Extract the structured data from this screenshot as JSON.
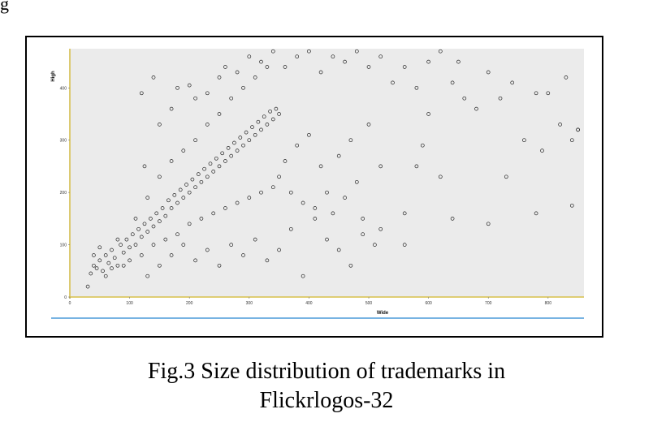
{
  "page_fragment": "g",
  "caption": {
    "line1": "Fig.3 Size distribution of trademarks in",
    "line2": "Flickrlogos-32"
  },
  "chart_data": {
    "type": "scatter",
    "xlabel": "Wide",
    "ylabel": "High",
    "xlim": [
      0,
      860
    ],
    "ylim": [
      0,
      475
    ],
    "x_ticks": [
      0,
      100,
      200,
      300,
      400,
      500,
      600,
      700,
      800
    ],
    "y_ticks": [
      0,
      100,
      200,
      300,
      400
    ],
    "grid": false,
    "colors": {
      "plot_bg": "#ebebeb",
      "axis": "#d8c04a",
      "marker": "#222222",
      "underline": "#4a9ad8"
    },
    "marker": "hollow-circle",
    "points": [
      [
        30,
        20
      ],
      [
        35,
        45
      ],
      [
        40,
        60
      ],
      [
        45,
        55
      ],
      [
        50,
        70
      ],
      [
        55,
        50
      ],
      [
        60,
        80
      ],
      [
        65,
        65
      ],
      [
        70,
        90
      ],
      [
        75,
        75
      ],
      [
        80,
        60
      ],
      [
        85,
        100
      ],
      [
        90,
        85
      ],
      [
        95,
        110
      ],
      [
        100,
        95
      ],
      [
        105,
        120
      ],
      [
        110,
        100
      ],
      [
        115,
        130
      ],
      [
        120,
        115
      ],
      [
        125,
        140
      ],
      [
        130,
        125
      ],
      [
        135,
        150
      ],
      [
        140,
        135
      ],
      [
        145,
        160
      ],
      [
        150,
        145
      ],
      [
        155,
        170
      ],
      [
        160,
        155
      ],
      [
        165,
        185
      ],
      [
        170,
        170
      ],
      [
        175,
        195
      ],
      [
        180,
        180
      ],
      [
        185,
        205
      ],
      [
        190,
        190
      ],
      [
        195,
        215
      ],
      [
        200,
        200
      ],
      [
        205,
        225
      ],
      [
        210,
        210
      ],
      [
        215,
        235
      ],
      [
        220,
        220
      ],
      [
        225,
        245
      ],
      [
        230,
        230
      ],
      [
        235,
        255
      ],
      [
        240,
        240
      ],
      [
        245,
        265
      ],
      [
        250,
        250
      ],
      [
        255,
        275
      ],
      [
        260,
        260
      ],
      [
        265,
        285
      ],
      [
        270,
        270
      ],
      [
        275,
        295
      ],
      [
        280,
        280
      ],
      [
        285,
        305
      ],
      [
        290,
        290
      ],
      [
        295,
        315
      ],
      [
        300,
        300
      ],
      [
        305,
        325
      ],
      [
        310,
        310
      ],
      [
        315,
        335
      ],
      [
        320,
        320
      ],
      [
        325,
        345
      ],
      [
        330,
        330
      ],
      [
        335,
        355
      ],
      [
        340,
        340
      ],
      [
        345,
        360
      ],
      [
        350,
        350
      ],
      [
        40,
        80
      ],
      [
        50,
        95
      ],
      [
        60,
        40
      ],
      [
        70,
        55
      ],
      [
        80,
        110
      ],
      [
        90,
        60
      ],
      [
        100,
        70
      ],
      [
        110,
        150
      ],
      [
        120,
        80
      ],
      [
        130,
        190
      ],
      [
        140,
        100
      ],
      [
        150,
        230
      ],
      [
        160,
        110
      ],
      [
        170,
        260
      ],
      [
        180,
        120
      ],
      [
        190,
        280
      ],
      [
        200,
        140
      ],
      [
        210,
        300
      ],
      [
        220,
        150
      ],
      [
        230,
        330
      ],
      [
        240,
        160
      ],
      [
        250,
        350
      ],
      [
        260,
        170
      ],
      [
        270,
        380
      ],
      [
        280,
        180
      ],
      [
        290,
        400
      ],
      [
        300,
        190
      ],
      [
        310,
        420
      ],
      [
        320,
        200
      ],
      [
        330,
        440
      ],
      [
        340,
        210
      ],
      [
        350,
        230
      ],
      [
        360,
        260
      ],
      [
        370,
        200
      ],
      [
        380,
        290
      ],
      [
        390,
        180
      ],
      [
        400,
        310
      ],
      [
        410,
        170
      ],
      [
        420,
        250
      ],
      [
        430,
        200
      ],
      [
        440,
        160
      ],
      [
        450,
        270
      ],
      [
        460,
        190
      ],
      [
        470,
        300
      ],
      [
        480,
        220
      ],
      [
        490,
        150
      ],
      [
        500,
        330
      ],
      [
        510,
        100
      ],
      [
        520,
        250
      ],
      [
        140,
        420
      ],
      [
        150,
        330
      ],
      [
        170,
        360
      ],
      [
        180,
        400
      ],
      [
        200,
        405
      ],
      [
        210,
        380
      ],
      [
        230,
        390
      ],
      [
        250,
        420
      ],
      [
        260,
        440
      ],
      [
        280,
        430
      ],
      [
        300,
        460
      ],
      [
        320,
        450
      ],
      [
        340,
        470
      ],
      [
        360,
        440
      ],
      [
        380,
        460
      ],
      [
        400,
        470
      ],
      [
        420,
        430
      ],
      [
        440,
        460
      ],
      [
        460,
        450
      ],
      [
        480,
        470
      ],
      [
        500,
        440
      ],
      [
        520,
        460
      ],
      [
        540,
        410
      ],
      [
        560,
        440
      ],
      [
        580,
        400
      ],
      [
        600,
        450
      ],
      [
        620,
        470
      ],
      [
        640,
        410
      ],
      [
        650,
        450
      ],
      [
        660,
        380
      ],
      [
        680,
        360
      ],
      [
        700,
        430
      ],
      [
        720,
        380
      ],
      [
        740,
        410
      ],
      [
        760,
        300
      ],
      [
        780,
        390
      ],
      [
        790,
        280
      ],
      [
        800,
        390
      ],
      [
        820,
        330
      ],
      [
        830,
        420
      ],
      [
        840,
        300
      ],
      [
        850,
        320
      ],
      [
        120,
        390
      ],
      [
        125,
        250
      ],
      [
        130,
        40
      ],
      [
        150,
        60
      ],
      [
        170,
        80
      ],
      [
        190,
        100
      ],
      [
        210,
        70
      ],
      [
        230,
        90
      ],
      [
        250,
        60
      ],
      [
        270,
        100
      ],
      [
        290,
        80
      ],
      [
        310,
        110
      ],
      [
        330,
        70
      ],
      [
        350,
        90
      ],
      [
        370,
        130
      ],
      [
        390,
        40
      ],
      [
        410,
        150
      ],
      [
        430,
        110
      ],
      [
        450,
        90
      ],
      [
        470,
        60
      ],
      [
        490,
        120
      ],
      [
        520,
        130
      ],
      [
        560,
        100
      ],
      [
        560,
        160
      ],
      [
        580,
        250
      ],
      [
        590,
        290
      ],
      [
        600,
        350
      ],
      [
        620,
        230
      ],
      [
        640,
        150
      ],
      [
        700,
        140
      ],
      [
        730,
        230
      ],
      [
        780,
        160
      ],
      [
        840,
        175
      ],
      [
        850,
        320
      ]
    ]
  }
}
